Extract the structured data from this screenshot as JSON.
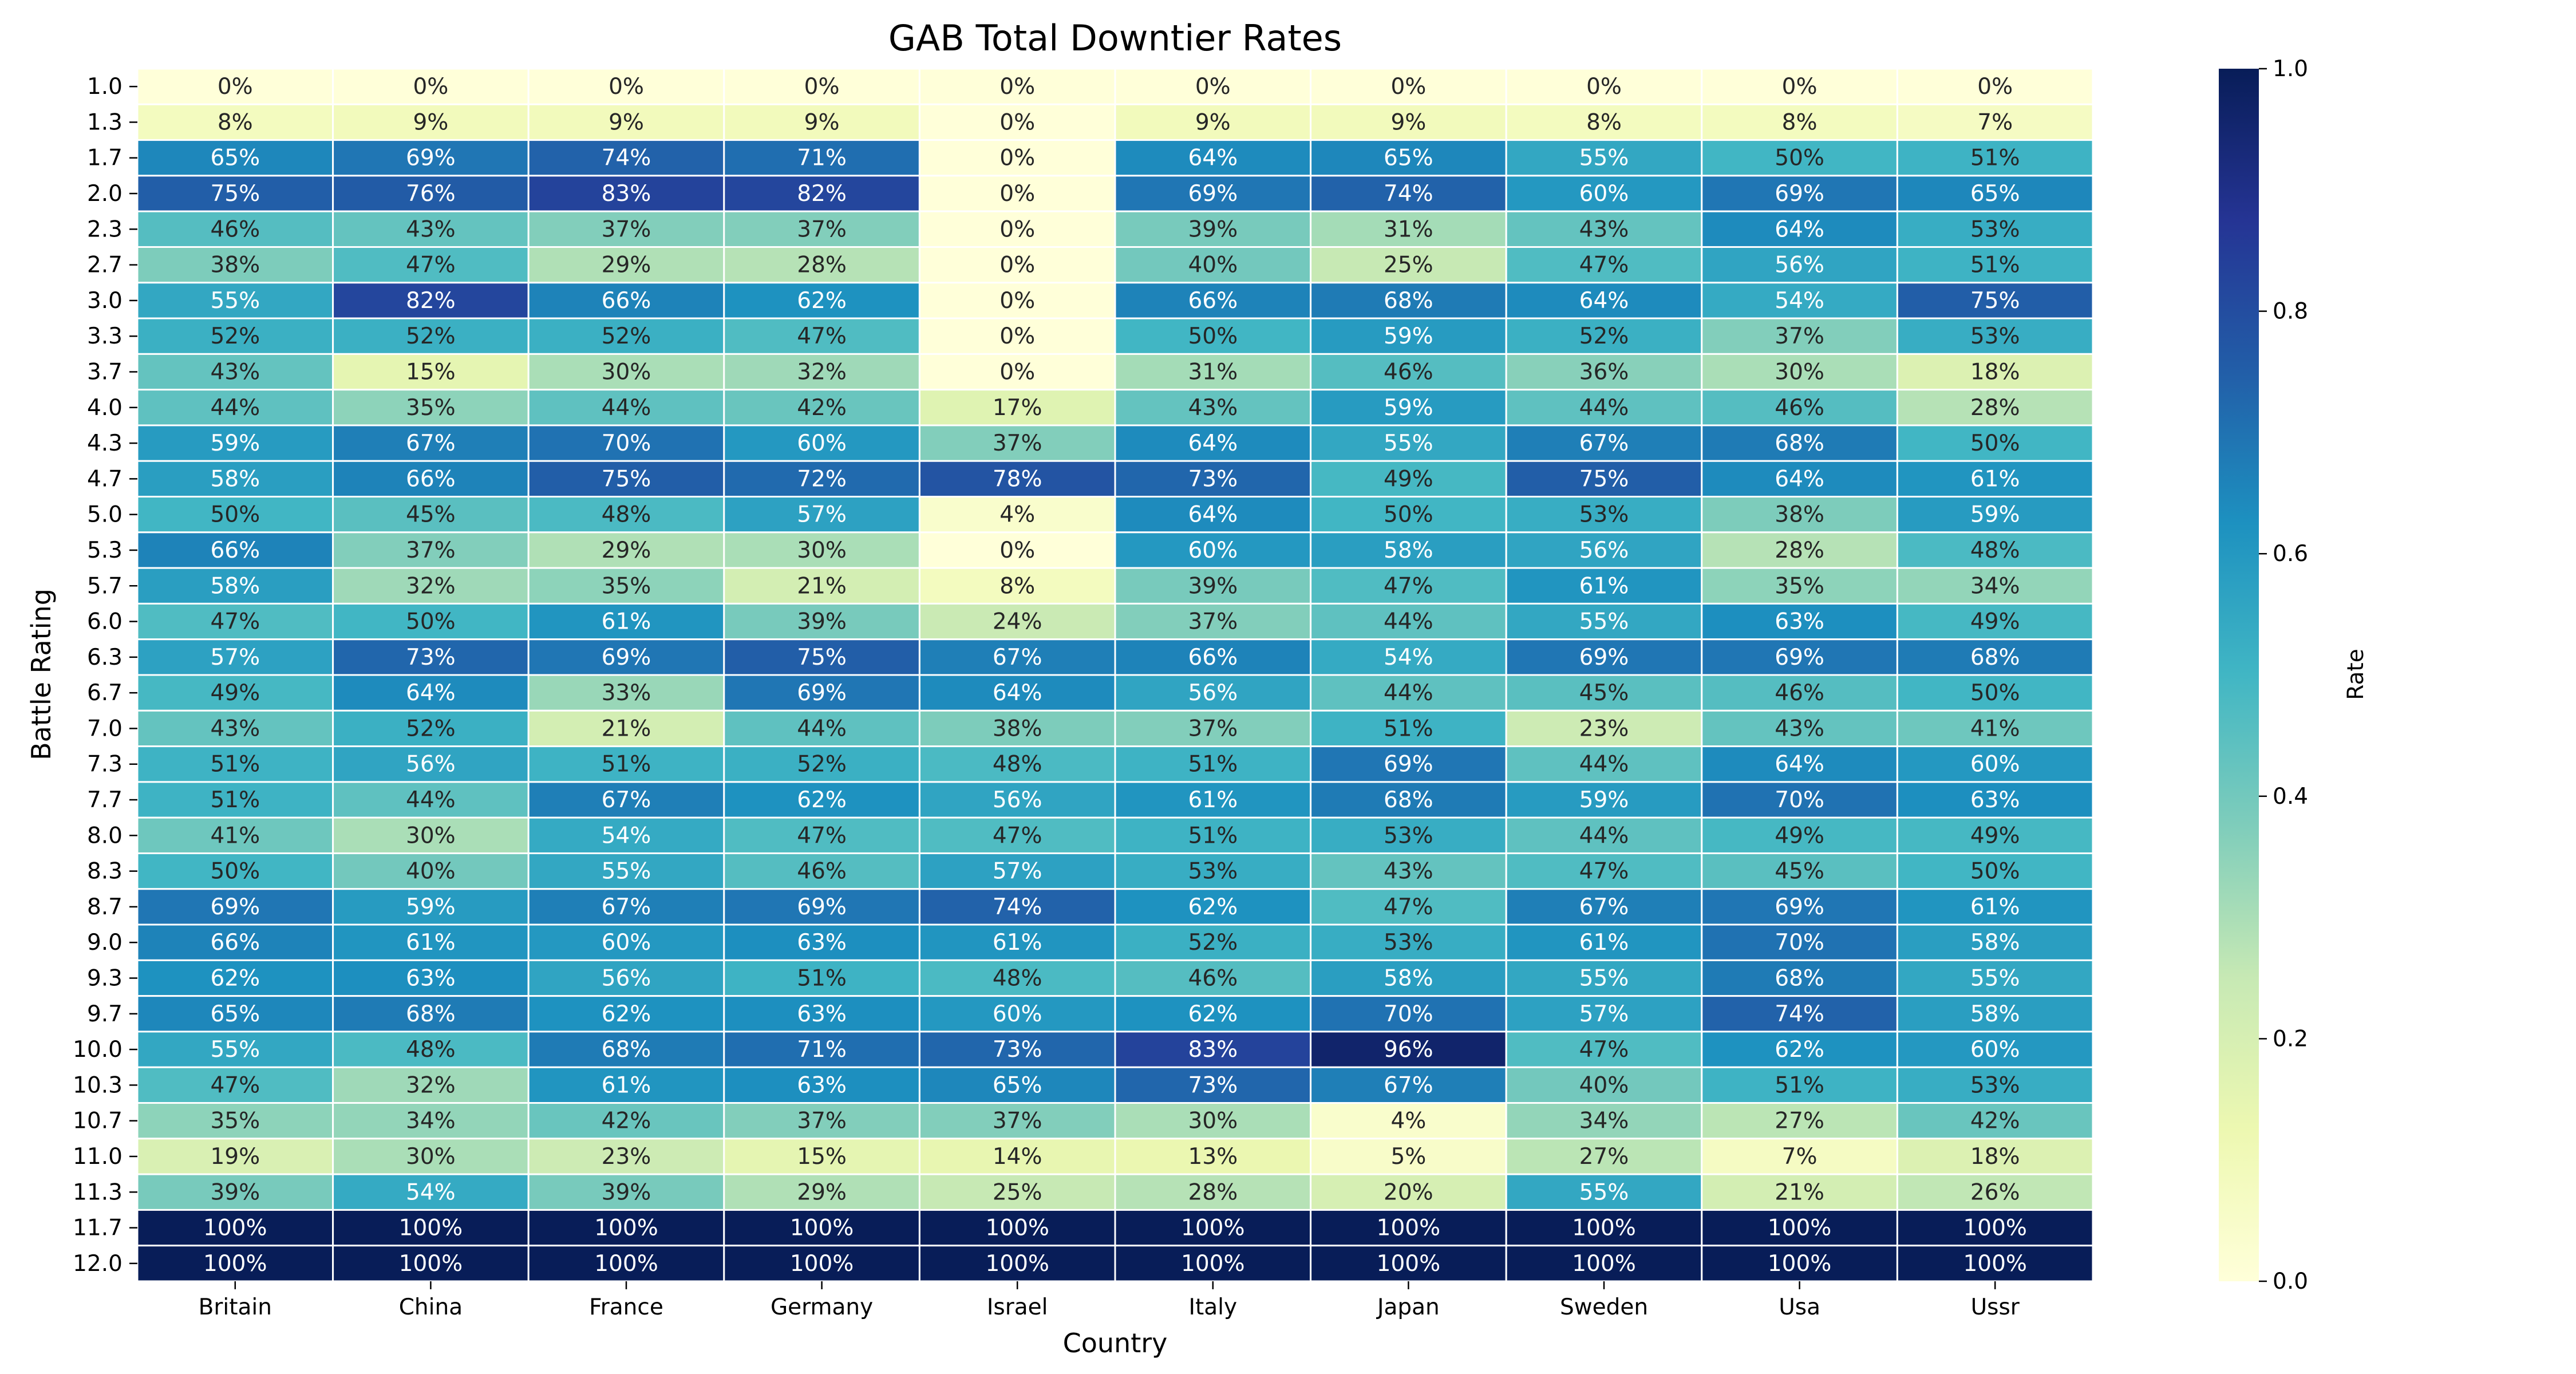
{
  "chart_data": {
    "type": "heatmap",
    "title": "GAB Total Downtier Rates",
    "xlabel": "Country",
    "ylabel": "Battle Rating",
    "colorbar_label": "Rate",
    "colorbar_range": [
      0.0,
      1.0
    ],
    "colorbar_ticks": [
      "0.0",
      "0.2",
      "0.4",
      "0.6",
      "0.8",
      "1.0"
    ],
    "colormap": "YlGnBu",
    "columns": [
      "Britain",
      "China",
      "France",
      "Germany",
      "Israel",
      "Italy",
      "Japan",
      "Sweden",
      "Usa",
      "Ussr"
    ],
    "rows": [
      "1.0",
      "1.3",
      "1.7",
      "2.0",
      "2.3",
      "2.7",
      "3.0",
      "3.3",
      "3.7",
      "4.0",
      "4.3",
      "4.7",
      "5.0",
      "5.3",
      "5.7",
      "6.0",
      "6.3",
      "6.7",
      "7.0",
      "7.3",
      "7.7",
      "8.0",
      "8.3",
      "8.7",
      "9.0",
      "9.3",
      "9.7",
      "10.0",
      "10.3",
      "10.7",
      "11.0",
      "11.3",
      "11.7",
      "12.0"
    ],
    "values": [
      [
        0,
        0,
        0,
        0,
        0,
        0,
        0,
        0,
        0,
        0
      ],
      [
        8,
        9,
        9,
        9,
        0,
        9,
        9,
        8,
        8,
        7
      ],
      [
        65,
        69,
        74,
        71,
        0,
        64,
        65,
        55,
        50,
        51
      ],
      [
        75,
        76,
        83,
        82,
        0,
        69,
        74,
        60,
        69,
        65
      ],
      [
        46,
        43,
        37,
        37,
        0,
        39,
        31,
        43,
        64,
        53
      ],
      [
        38,
        47,
        29,
        28,
        0,
        40,
        25,
        47,
        56,
        51
      ],
      [
        55,
        82,
        66,
        62,
        0,
        66,
        68,
        64,
        54,
        75
      ],
      [
        52,
        52,
        52,
        47,
        0,
        50,
        59,
        52,
        37,
        53
      ],
      [
        43,
        15,
        30,
        32,
        0,
        31,
        46,
        36,
        30,
        18
      ],
      [
        44,
        35,
        44,
        42,
        17,
        43,
        59,
        44,
        46,
        28
      ],
      [
        59,
        67,
        70,
        60,
        37,
        64,
        55,
        67,
        68,
        50
      ],
      [
        58,
        66,
        75,
        72,
        78,
        73,
        49,
        75,
        64,
        61
      ],
      [
        50,
        45,
        48,
        57,
        4,
        64,
        50,
        53,
        38,
        59
      ],
      [
        66,
        37,
        29,
        30,
        0,
        60,
        58,
        56,
        28,
        48
      ],
      [
        58,
        32,
        35,
        21,
        8,
        39,
        47,
        61,
        35,
        34
      ],
      [
        47,
        50,
        61,
        39,
        24,
        37,
        44,
        55,
        63,
        49
      ],
      [
        57,
        73,
        69,
        75,
        67,
        66,
        54,
        69,
        69,
        68
      ],
      [
        49,
        64,
        33,
        69,
        64,
        56,
        44,
        45,
        46,
        50
      ],
      [
        43,
        52,
        21,
        44,
        38,
        37,
        51,
        23,
        43,
        41
      ],
      [
        51,
        56,
        51,
        52,
        48,
        51,
        69,
        44,
        64,
        60
      ],
      [
        51,
        44,
        67,
        62,
        56,
        61,
        68,
        59,
        70,
        63
      ],
      [
        41,
        30,
        54,
        47,
        47,
        51,
        53,
        44,
        49,
        49
      ],
      [
        50,
        40,
        55,
        46,
        57,
        53,
        43,
        47,
        45,
        50
      ],
      [
        69,
        59,
        67,
        69,
        74,
        62,
        47,
        67,
        69,
        61
      ],
      [
        66,
        61,
        60,
        63,
        61,
        52,
        53,
        61,
        70,
        58
      ],
      [
        62,
        63,
        56,
        51,
        48,
        46,
        58,
        55,
        68,
        55
      ],
      [
        65,
        68,
        62,
        63,
        60,
        62,
        70,
        57,
        74,
        58
      ],
      [
        55,
        48,
        68,
        71,
        73,
        83,
        96,
        47,
        62,
        60
      ],
      [
        47,
        32,
        61,
        63,
        65,
        73,
        67,
        40,
        51,
        53
      ],
      [
        35,
        34,
        42,
        37,
        37,
        30,
        4,
        34,
        27,
        42
      ],
      [
        19,
        30,
        23,
        15,
        14,
        13,
        5,
        27,
        7,
        18
      ],
      [
        39,
        54,
        39,
        29,
        25,
        28,
        20,
        55,
        21,
        26
      ],
      [
        100,
        100,
        100,
        100,
        100,
        100,
        100,
        100,
        100,
        100
      ],
      [
        100,
        100,
        100,
        100,
        100,
        100,
        100,
        100,
        100,
        100
      ]
    ],
    "value_suffix": "%",
    "grid": false,
    "legend_placement": "right colorbar"
  }
}
